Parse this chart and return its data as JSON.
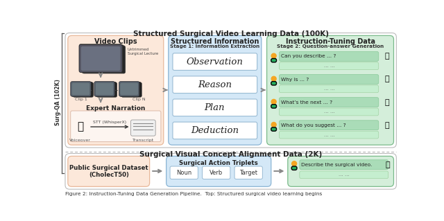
{
  "title_top": "Structured Surgical Video Learning Data (100K)",
  "title_bottom": "Surgical Visual Concept Alignment Data (2K)",
  "caption": "Figure 2: Instruction-Tuning Data Generation Pipeline.  Top: Structured surgical video learning begins",
  "left_label": "Surg-QA (102K)",
  "top_section": {
    "box1_title": "Video Clips",
    "box1_untrimmed": "Untrimmed\nSurgical Lecture",
    "box1_clip1": "Clip 1",
    "box1_clipN": "Clip N",
    "box1_narration": "Expert Narration",
    "box1_voiceover": "Voiceover",
    "box1_stt": "STT (WhisperX)",
    "box1_transcript": "Transcript",
    "box1_color": "#fce8da",
    "box2_title": "Structured Information",
    "box2_stage": "Stage 1: Information Extraction",
    "box2_items": [
      "Observation",
      "Reason",
      "Plan",
      "Deduction"
    ],
    "box2_color": "#d4e8f7",
    "box3_title": "Instruction-Tuning Data",
    "box3_stage": "Stage 2: Question-answer Generation",
    "box3_questions": [
      "Can you describe ... ?",
      "Why is ... ?",
      "What’s the next ... ?",
      "What do you suggest ... ?"
    ],
    "box3_color": "#d4eeda"
  },
  "bottom_section": {
    "box1_title": "Public Surgical Dataset\n(CholecT50)",
    "box1_color": "#fce8da",
    "box2_title": "Surgical Action Triplets",
    "box2_items": [
      "Noun",
      "Verb",
      "Target"
    ],
    "box2_color": "#d4e8f7",
    "box3_question": "Describe the surgical video.",
    "box3_color": "#d4eeda"
  },
  "arrow_color": "#888888",
  "dot_orange": "#f5a623",
  "dot_green": "#27ae60",
  "bubble_user": "#a8ddb5",
  "bubble_bot": "#b8e6c4",
  "item_white": "#ffffff",
  "border_salmon": "#e8b89a",
  "border_blue": "#8ab4d4",
  "border_green": "#7aba8a"
}
